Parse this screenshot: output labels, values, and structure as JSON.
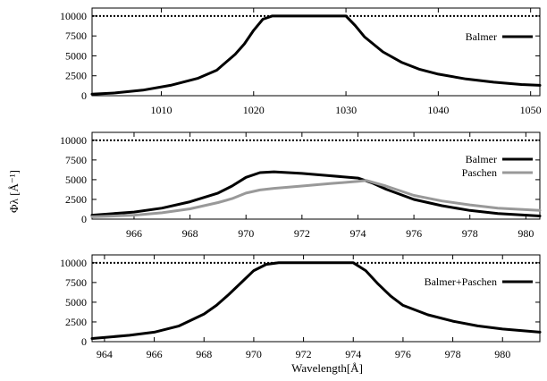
{
  "figure": {
    "ylabel": "Φλ [Å⁻¹]",
    "xlabel": "Wavelength[Å]"
  },
  "chart_data": [
    {
      "type": "line",
      "panel": "top",
      "xlim": [
        1002.5,
        1051
      ],
      "ylim": [
        0,
        11000
      ],
      "xticks": [
        1010,
        1020,
        1030,
        1040,
        1050
      ],
      "yticks": [
        0,
        2500,
        5000,
        7500,
        10000
      ],
      "grid": false,
      "legend_position": "top-right",
      "reference_line": {
        "y": 10000,
        "style": "dotted"
      },
      "series": [
        {
          "name": "Balmer",
          "color": "#000000",
          "x": [
            1002.5,
            1005,
            1008,
            1011,
            1014,
            1016,
            1018,
            1019,
            1020,
            1021,
            1022,
            1030,
            1031,
            1032,
            1034,
            1036,
            1038,
            1040,
            1043,
            1046,
            1049,
            1051
          ],
          "y": [
            200,
            350,
            700,
            1300,
            2200,
            3200,
            5200,
            6500,
            8200,
            9600,
            10000,
            10000,
            8800,
            7400,
            5500,
            4200,
            3300,
            2700,
            2100,
            1700,
            1400,
            1300
          ]
        }
      ]
    },
    {
      "type": "line",
      "panel": "middle",
      "xlim": [
        964.5,
        980.5
      ],
      "ylim": [
        0,
        11000
      ],
      "xticks": [
        966,
        968,
        970,
        972,
        974,
        976,
        978,
        980
      ],
      "yticks": [
        0,
        2500,
        5000,
        7500,
        10000
      ],
      "grid": false,
      "legend_position": "top-right",
      "reference_line": {
        "y": 10000,
        "style": "dotted"
      },
      "series": [
        {
          "name": "Balmer",
          "color": "#000000",
          "x": [
            964.5,
            966,
            967,
            968,
            969,
            969.5,
            970,
            970.5,
            971,
            972,
            973,
            974,
            974.5,
            975,
            976,
            977,
            978,
            979,
            980.5
          ],
          "y": [
            500,
            900,
            1400,
            2200,
            3300,
            4200,
            5300,
            5900,
            6000,
            5800,
            5500,
            5200,
            4600,
            3800,
            2500,
            1700,
            1100,
            700,
            400
          ]
        },
        {
          "name": "Paschen",
          "color": "#999999",
          "x": [
            964.5,
            966,
            967,
            968,
            969,
            969.5,
            970,
            970.5,
            971,
            972,
            973,
            974,
            974.3,
            975,
            976,
            977,
            978,
            979,
            980.5
          ],
          "y": [
            300,
            500,
            800,
            1300,
            2100,
            2600,
            3300,
            3700,
            3900,
            4200,
            4500,
            4800,
            4900,
            4200,
            3000,
            2300,
            1800,
            1400,
            1100
          ]
        }
      ]
    },
    {
      "type": "line",
      "panel": "bottom",
      "xlim": [
        963.5,
        981.5
      ],
      "ylim": [
        0,
        11000
      ],
      "xticks": [
        964,
        966,
        968,
        970,
        972,
        974,
        976,
        978,
        980
      ],
      "yticks": [
        0,
        2500,
        5000,
        7500,
        10000
      ],
      "grid": false,
      "legend_position": "top-right",
      "reference_line": {
        "y": 10000,
        "style": "dotted"
      },
      "series": [
        {
          "name": "Balmer+Paschen",
          "color": "#000000",
          "x": [
            963.5,
            965,
            966,
            967,
            968,
            968.5,
            969,
            969.5,
            970,
            970.5,
            971,
            974,
            974.5,
            975,
            975.5,
            976,
            977,
            978,
            979,
            980,
            981.5
          ],
          "y": [
            400,
            800,
            1200,
            2000,
            3500,
            4600,
            6000,
            7500,
            9000,
            9800,
            10000,
            10000,
            9000,
            7300,
            5800,
            4600,
            3400,
            2600,
            2000,
            1600,
            1200
          ]
        }
      ]
    }
  ]
}
